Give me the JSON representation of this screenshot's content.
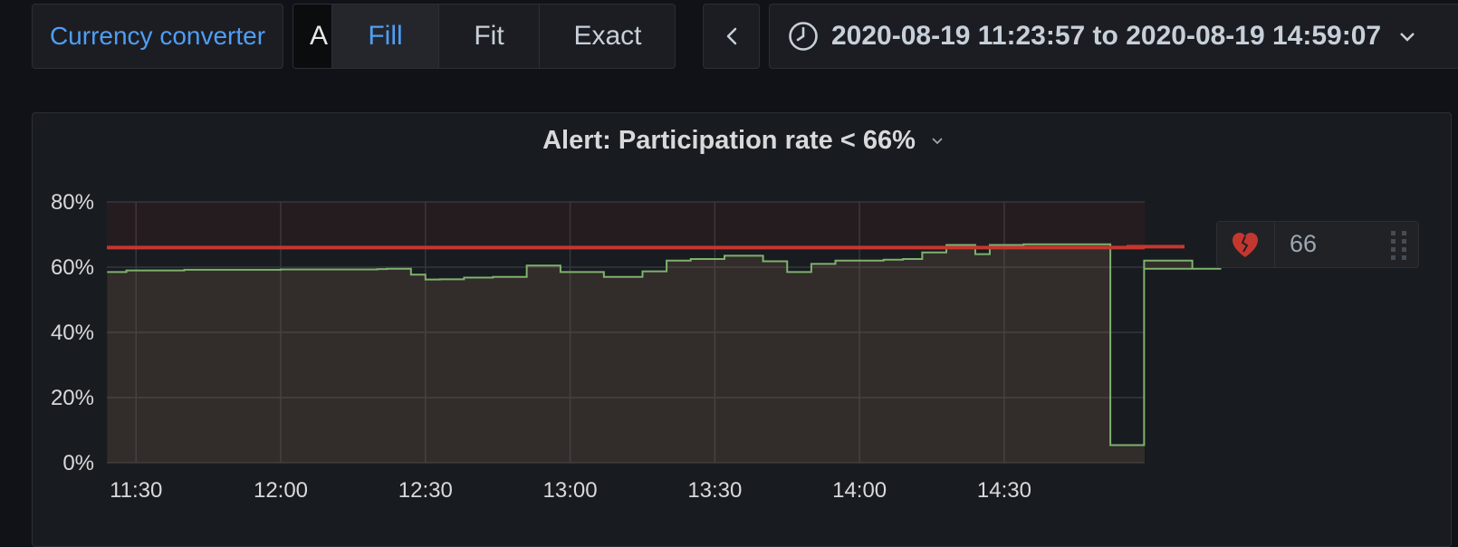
{
  "toolbar": {
    "dashboard_link": "Currency converter",
    "view_modes": {
      "partial": "A",
      "fill": "Fill",
      "fit": "Fit",
      "exact": "Exact"
    },
    "prev_label": "‹",
    "time_range": "2020-08-19 11:23:57 to 2020-08-19 14:59:07"
  },
  "panel": {
    "title": "Alert: Participation rate < 66%"
  },
  "threshold": {
    "value": "66",
    "icon": "broken-heart-icon",
    "color": "#c4372f"
  },
  "colors": {
    "series_line": "#7eb26d",
    "threshold": "#c4372f",
    "accent": "#4f9ef5"
  },
  "chart_data": {
    "type": "line",
    "title": "Alert: Participation rate < 66%",
    "step": true,
    "ylim": [
      0,
      80
    ],
    "yticks": [
      "0%",
      "20%",
      "40%",
      "60%",
      "80%"
    ],
    "ytick_values": [
      0,
      20,
      40,
      60,
      80
    ],
    "xlim": [
      "11:23:57",
      "14:59:07"
    ],
    "xticks": [
      "11:30",
      "12:00",
      "12:30",
      "13:00",
      "13:30",
      "14:00",
      "14:30"
    ],
    "xtick_minutes": [
      690,
      720,
      750,
      780,
      810,
      840,
      870
    ],
    "threshold": 66,
    "threshold_op": "<",
    "grid": true,
    "series": [
      {
        "x_minutes": [
          684,
          688,
          700,
          710,
          720,
          730,
          740,
          742,
          747,
          750,
          753,
          758,
          764,
          769,
          771,
          775,
          778,
          782,
          787,
          790,
          795,
          800,
          805,
          807,
          812,
          817,
          820,
          825,
          830,
          835,
          840,
          845,
          849,
          853,
          858,
          864,
          867,
          870,
          874,
          878,
          883,
          892,
          893,
          894,
          899,
          900,
          902,
          909,
          915
        ],
        "y": [
          58.5,
          59,
          59.2,
          59.2,
          59.3,
          59.3,
          59.4,
          59.5,
          57.7,
          56.2,
          56.3,
          56.8,
          57,
          57,
          60.5,
          60.5,
          58.5,
          58.5,
          57,
          57,
          58.7,
          62,
          62.5,
          62.5,
          63.5,
          63.5,
          61.8,
          58.5,
          61,
          62,
          62,
          62.3,
          62.5,
          64.5,
          66.8,
          64,
          66.8,
          66.8,
          67,
          67,
          67,
          5.4,
          5.4,
          5.4,
          62,
          62,
          62,
          59.5,
          59.5
        ]
      }
    ]
  }
}
